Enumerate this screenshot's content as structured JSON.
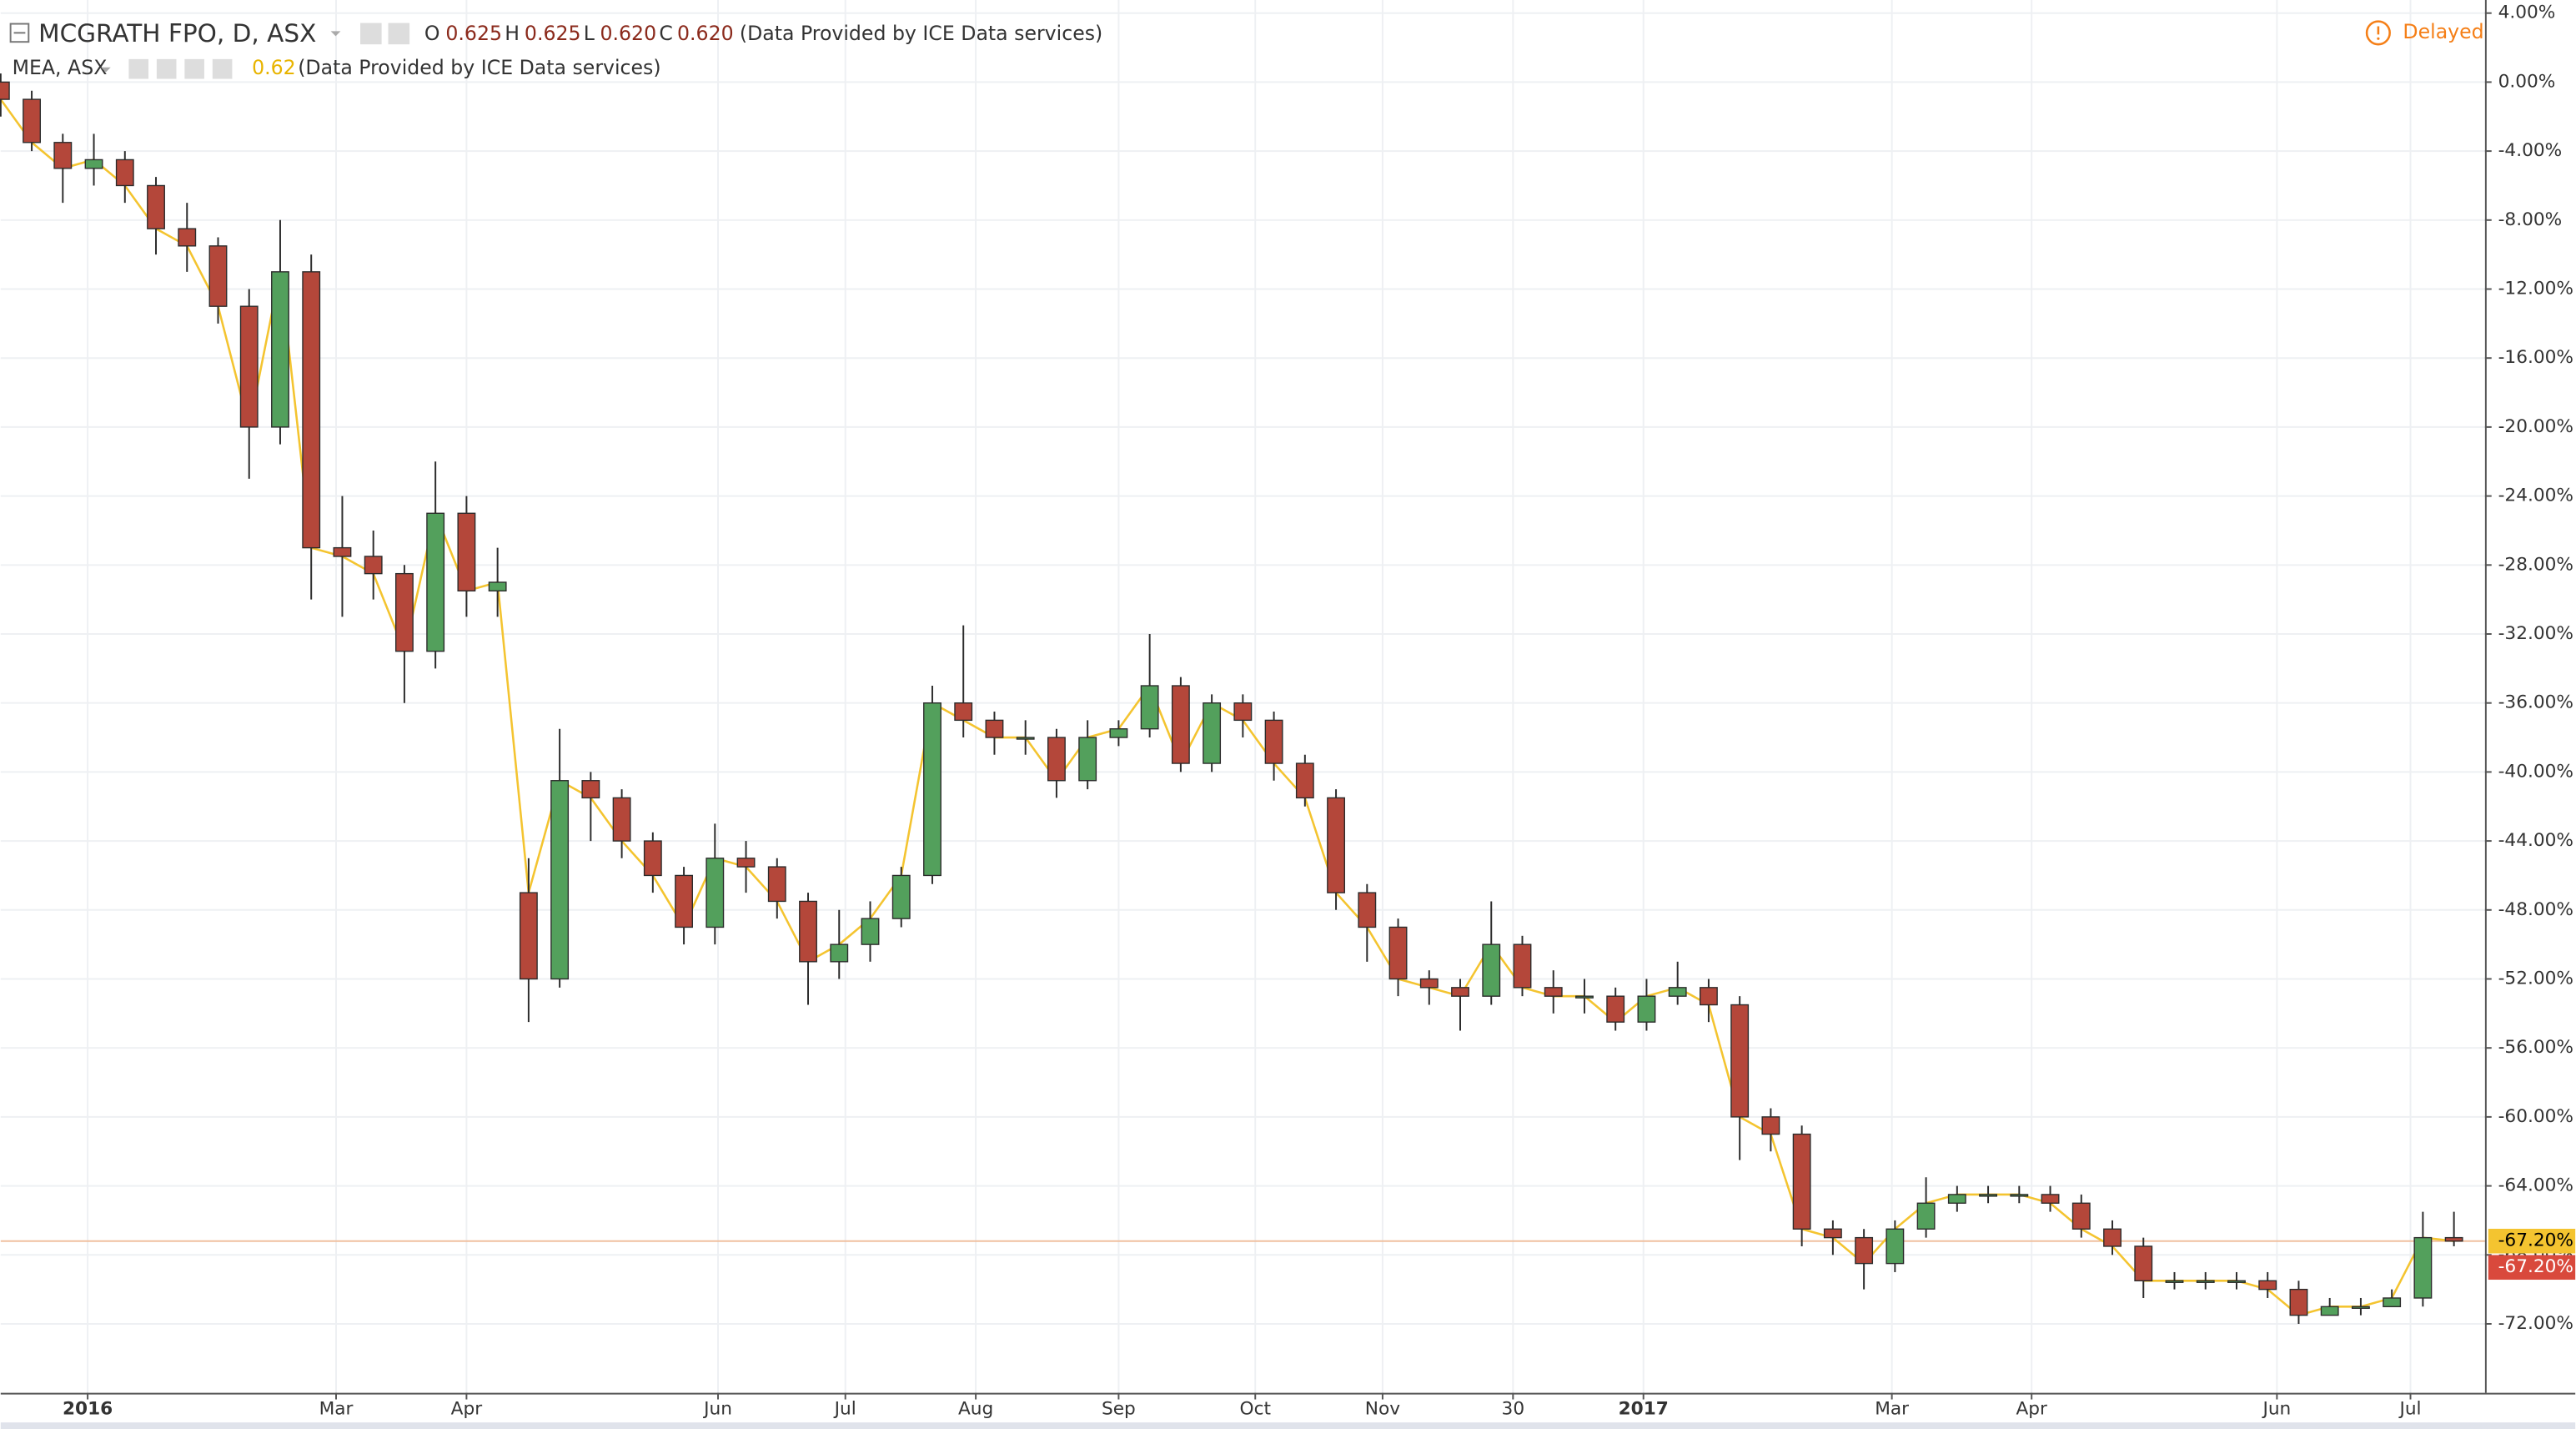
{
  "chart_data": {
    "type": "candlestick",
    "title": "MCGRATH FPO, D, ASX",
    "ohlc_legend": [
      {
        "key": "O",
        "text": "0.625"
      },
      {
        "key": "H",
        "text": "0.625"
      },
      {
        "key": "L",
        "text": "0.620"
      },
      {
        "key": "C",
        "text": "0.620"
      }
    ],
    "source": "(Data Provided by ICE Data services)",
    "compare_legend": {
      "name": "MEA, ASX",
      "text": "0.62",
      "source": "(Data Provided by ICE Data services)"
    },
    "status": "Delayed",
    "up_color": "#53a05c",
    "down_color": "#b4473a",
    "outline_color": "#2b2b2b",
    "x": [
      0,
      5,
      10,
      15,
      20,
      25,
      30,
      35,
      40,
      45,
      50,
      55,
      60,
      65,
      70,
      75,
      80,
      85,
      90,
      95,
      100,
      105,
      110,
      115,
      120,
      125,
      130,
      135,
      140,
      145,
      150,
      155,
      160,
      165,
      170,
      175,
      180,
      185,
      190,
      195,
      200,
      205,
      210,
      215,
      220,
      225,
      230,
      235,
      240,
      245,
      250,
      255,
      260,
      265,
      270,
      275,
      280,
      285,
      290,
      295,
      300,
      305,
      310,
      315,
      320,
      325,
      330,
      335,
      340,
      345,
      350,
      355,
      360,
      365,
      370,
      375,
      380,
      385,
      390,
      395
    ],
    "open": [
      0,
      -1,
      -3.5,
      -5,
      -4.5,
      -6,
      -8.5,
      -9.5,
      -13,
      -20,
      -11,
      -27,
      -27.5,
      -28.5,
      -33,
      -25,
      -29.5,
      -47,
      -52,
      -40.5,
      -41.5,
      -44,
      -46,
      -49,
      -45,
      -45.5,
      -47.5,
      -51,
      -50,
      -48.5,
      -46,
      -36,
      -37,
      -38,
      -38,
      -40.5,
      -38,
      -37.5,
      -35,
      -39.5,
      -36,
      -37,
      -39.5,
      -41.5,
      -47,
      -49,
      -52,
      -52.5,
      -53,
      -50,
      -52.5,
      -53,
      -53,
      -54.5,
      -53,
      -52.5,
      -53.5,
      -60,
      -61,
      -66.5,
      -67,
      -68.5,
      -66.5,
      -65,
      -64.5,
      -64.5,
      -64.5,
      -65,
      -66.5,
      -67.5,
      -69.5,
      -69.5,
      -69.5,
      -69.5,
      -70,
      -71.5,
      -71,
      -71,
      -70.5,
      -67
    ],
    "high": [
      0.5,
      -0.5,
      -3,
      -3,
      -4,
      -5.5,
      -7,
      -9,
      -12,
      -8,
      -10,
      -24,
      -26,
      -28,
      -22,
      -24,
      -27,
      -45,
      -37.5,
      -40,
      -41,
      -43.5,
      -45.5,
      -43,
      -44,
      -45,
      -47,
      -48,
      -47.5,
      -45.5,
      -35,
      -31.5,
      -36.5,
      -37,
      -37.5,
      -37,
      -37,
      -32,
      -34.5,
      -35.5,
      -35.5,
      -36.5,
      -39,
      -41,
      -46.5,
      -48.5,
      -51.5,
      -52,
      -47.5,
      -49.5,
      -51.5,
      -52,
      -52.5,
      -52,
      -51,
      -52,
      -53,
      -59.5,
      -60.5,
      -66,
      -66.5,
      -66,
      -63.5,
      -64,
      -64,
      -64,
      -64,
      -64.5,
      -66,
      -67,
      -69,
      -69,
      -69,
      -69,
      -69.5,
      -70.5,
      -70.5,
      -70,
      -65.5,
      -65.5
    ],
    "low": [
      -2,
      -4,
      -7,
      -6,
      -7,
      -10,
      -11,
      -14,
      -23,
      -21,
      -30,
      -31,
      -30,
      -36,
      -34,
      -31,
      -31,
      -54.5,
      -52.5,
      -44,
      -45,
      -47,
      -50,
      -50,
      -47,
      -48.5,
      -53.5,
      -52,
      -51,
      -49,
      -46.5,
      -38,
      -39,
      -39,
      -41.5,
      -41,
      -38.5,
      -38,
      -40,
      -40,
      -38,
      -40.5,
      -42,
      -48,
      -51,
      -53,
      -53.5,
      -55,
      -53.5,
      -53,
      -54,
      -54,
      -55,
      -55,
      -53.5,
      -54.5,
      -62.5,
      -62,
      -67.5,
      -68,
      -70,
      -69,
      -67,
      -65.5,
      -65,
      -65,
      -65.5,
      -67,
      -68,
      -70.5,
      -70,
      -70,
      -70,
      -70.5,
      -72,
      -71.5,
      -71.5,
      -71,
      -71,
      -67.5
    ],
    "close": [
      -1,
      -3.5,
      -5,
      -4.5,
      -6,
      -8.5,
      -9.5,
      -13,
      -20,
      -11,
      -27,
      -27.5,
      -28.5,
      -33,
      -25,
      -29.5,
      -29,
      -52,
      -40.5,
      -41.5,
      -44,
      -46,
      -49,
      -45,
      -45.5,
      -47.5,
      -51,
      -50,
      -48.5,
      -46,
      -36,
      -37,
      -38,
      -38,
      -40.5,
      -38,
      -37.5,
      -35,
      -39.5,
      -36,
      -37,
      -39.5,
      -41.5,
      -47,
      -49,
      -52,
      -52.5,
      -53,
      -50,
      -52.5,
      -53,
      -53,
      -54.5,
      -53,
      -52.5,
      -53.5,
      -60,
      -61,
      -66.5,
      -67,
      -68.5,
      -66.5,
      -65,
      -64.5,
      -64.5,
      -64.5,
      -65,
      -66.5,
      -67.5,
      -69.5,
      -69.5,
      -69.5,
      -69.5,
      -70,
      -71.5,
      -71,
      -71,
      -70.5,
      -67,
      -67.2
    ],
    "compare": {
      "name": "MEA, ASX",
      "color": "#f4c430",
      "values": [
        -1,
        -3.5,
        -5,
        -4.5,
        -6,
        -8.5,
        -9.5,
        -13,
        -20,
        -11,
        -27,
        -27.5,
        -28.5,
        -33,
        -25,
        -29.5,
        -29,
        -47,
        -40.5,
        -41.5,
        -44,
        -46,
        -49,
        -45,
        -45.5,
        -47.5,
        -51,
        -50,
        -48.5,
        -46,
        -36,
        -37,
        -38,
        -38,
        -40.5,
        -38,
        -37.5,
        -35,
        -39.5,
        -36,
        -37,
        -39.5,
        -41.5,
        -47,
        -49,
        -52,
        -52.5,
        -53,
        -50,
        -52.5,
        -53,
        -53,
        -54.5,
        -53,
        -52.5,
        -53.5,
        -60,
        -61,
        -66.5,
        -67,
        -68.5,
        -66.5,
        -65,
        -64.5,
        -64.5,
        -64.5,
        -65,
        -66.5,
        -67.5,
        -69.5,
        -69.5,
        -69.5,
        -69.5,
        -70,
        -71.5,
        -71,
        -71,
        -70.5,
        -67,
        -67.2
      ]
    },
    "last_labels": [
      {
        "value": -67.2,
        "label": "-67.20%",
        "color": "#f4c430"
      },
      {
        "value": -67.2,
        "label": "-67.20%",
        "color": "#d9493c"
      }
    ],
    "xlim": [
      0,
      400
    ],
    "ylim": [
      -76,
      4.76
    ],
    "xticks": [
      {
        "value": 14,
        "label": "2016"
      },
      {
        "value": 54,
        "label": "Mar"
      },
      {
        "value": 75,
        "label": "Apr"
      },
      {
        "value": 115.5,
        "label": "Jun"
      },
      {
        "value": 136,
        "label": "Jul"
      },
      {
        "value": 157,
        "label": "Aug"
      },
      {
        "value": 180,
        "label": "Sep"
      },
      {
        "value": 202,
        "label": "Oct"
      },
      {
        "value": 222.5,
        "label": "Nov"
      },
      {
        "value": 243.5,
        "label": "30"
      },
      {
        "value": 264.5,
        "label": "2017"
      },
      {
        "value": 304.5,
        "label": "Mar"
      },
      {
        "value": 327,
        "label": "Apr"
      },
      {
        "value": 366.5,
        "label": "Jun"
      },
      {
        "value": 388,
        "label": "Jul"
      }
    ],
    "yticks": [
      {
        "value": 4,
        "label": "4.00%"
      },
      {
        "value": 0,
        "label": "0.00%"
      },
      {
        "value": -4,
        "label": "-4.00%"
      },
      {
        "value": -8,
        "label": "-8.00%"
      },
      {
        "value": -12,
        "label": "-12.00%"
      },
      {
        "value": -16,
        "label": "-16.00%"
      },
      {
        "value": -20,
        "label": "-20.00%"
      },
      {
        "value": -24,
        "label": "-24.00%"
      },
      {
        "value": -28,
        "label": "-28.00%"
      },
      {
        "value": -32,
        "label": "-32.00%"
      },
      {
        "value": -36,
        "label": "-36.00%"
      },
      {
        "value": -40,
        "label": "-40.00%"
      },
      {
        "value": -44,
        "label": "-44.00%"
      },
      {
        "value": -48,
        "label": "-48.00%"
      },
      {
        "value": -52,
        "label": "-52.00%"
      },
      {
        "value": -56,
        "label": "-56.00%"
      },
      {
        "value": -60,
        "label": "-60.00%"
      },
      {
        "value": -64,
        "label": "-64.00%"
      },
      {
        "value": -68,
        "label": "-68.00%"
      },
      {
        "value": -72,
        "label": "-72.00%"
      }
    ],
    "grid": true
  }
}
